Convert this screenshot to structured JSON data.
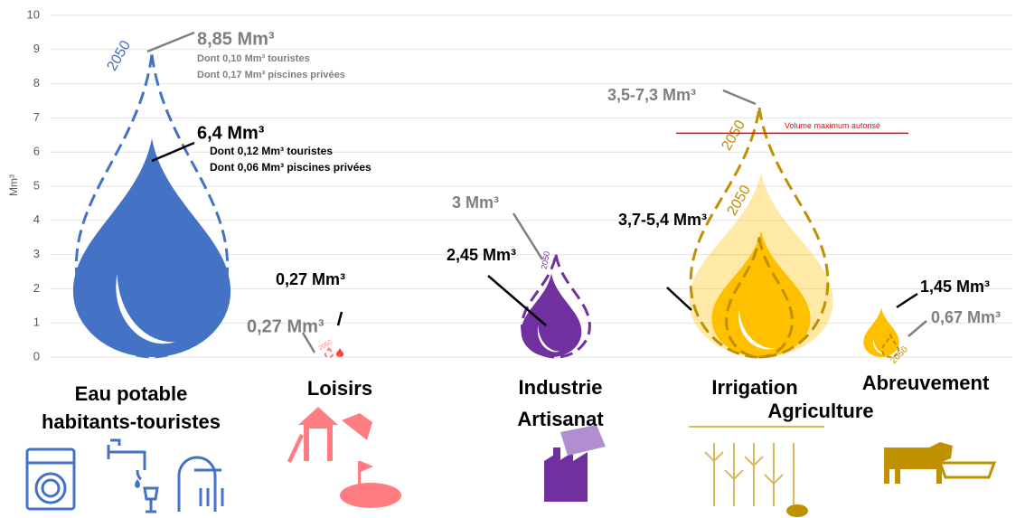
{
  "chart_data": {
    "type": "drop",
    "ylabel": "Mm³",
    "ylim": [
      0,
      10
    ],
    "yticks": [
      0,
      1,
      2,
      3,
      4,
      5,
      6,
      7,
      8,
      9,
      10
    ],
    "groups": [
      {
        "label": [
          "Eau potable",
          "habitants-touristes"
        ],
        "color": "#4472c4",
        "future_color": "#4472c4",
        "current": 6.4,
        "current_label": "6,4 Mm³",
        "current_notes": [
          "Dont 0,12 Mm³ touristes",
          "Dont 0,06 Mm³ piscines privées"
        ],
        "future": 8.85,
        "future_label": "8,85 Mm³",
        "future_notes": [
          "Dont 0,10 Mm³ touristes",
          "Dont 0,17 Mm³ piscines privées"
        ],
        "future_tag": "2050"
      },
      {
        "label": [
          "Loisirs"
        ],
        "color": "#ff3b3b",
        "future_color": "#ff7c80",
        "current": 0.27,
        "current_label": "0,27 Mm³",
        "future": 0.27,
        "future_label": "0,27 Mm³",
        "future_tag": "2050"
      },
      {
        "label": [
          "Industrie",
          "Artisanat"
        ],
        "color": "#7030a0",
        "future_color": "#7030a0",
        "current": 2.45,
        "current_label": "2,45 Mm³",
        "future": 3,
        "future_label": "3 Mm³",
        "future_tag": "2050"
      },
      {
        "label": [
          "Irrigation",
          "Agriculture"
        ],
        "color": "#ffc000",
        "future_color": "#bf9000",
        "current": [
          3.7,
          5.4
        ],
        "current_label": "3,7-5,4 Mm³",
        "future": [
          3.5,
          7.3
        ],
        "future_label": "3,5-7,3 Mm³",
        "future_tag": "2050"
      },
      {
        "label": [
          "Abreuvement"
        ],
        "color": "#ffc000",
        "future_color": "#bf9000",
        "current": 1.45,
        "current_label": "1,45 Mm³",
        "future": 0.67,
        "future_label": "0,67 Mm³",
        "future_tag": "2050"
      }
    ],
    "max_line": {
      "label": "Volume maximum autorisé",
      "value": 6.55,
      "color": "#ff0000"
    }
  }
}
